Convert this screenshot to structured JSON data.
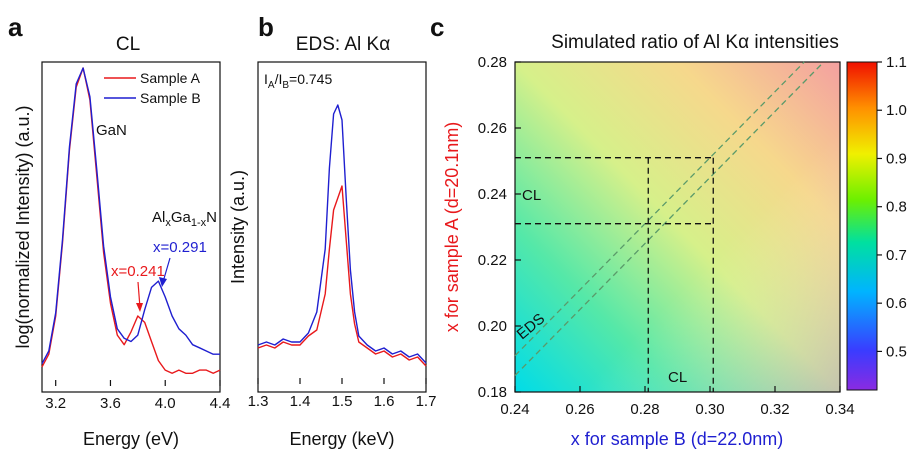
{
  "colors": {
    "sample_a": "#e8191c",
    "sample_b": "#1f1fd0",
    "axis": "#111111",
    "ylabel_c": "#e8191c",
    "xlabel_c": "#1f1fd0"
  },
  "chart_data": [
    {
      "panel": "a",
      "type": "line",
      "title": "CL",
      "xlabel": "Energy (eV)",
      "ylabel": "log(normalized Intensity) (a.u.)",
      "xlim": [
        3.1,
        4.4
      ],
      "xticks": [
        "3.2",
        "3.6",
        "4.0",
        "4.4"
      ],
      "x_tick_values": [
        3.2,
        3.6,
        4.0,
        4.4
      ],
      "y_relative_range": [
        0,
        1
      ],
      "legend_position": "top-right",
      "annotations": {
        "gan": "GaN",
        "alloy": {
          "base1": "Al",
          "sub1": "x",
          "base2": "Ga",
          "sub2": "1-x",
          "base3": "N"
        },
        "xa": "x=0.241",
        "xb": "x=0.291"
      },
      "series": [
        {
          "name": "Sample A",
          "color": "#e8191c",
          "x": [
            3.1,
            3.15,
            3.2,
            3.25,
            3.3,
            3.35,
            3.4,
            3.45,
            3.5,
            3.55,
            3.6,
            3.65,
            3.7,
            3.75,
            3.8,
            3.85,
            3.9,
            3.95,
            4.0,
            4.05,
            4.1,
            4.15,
            4.2,
            4.25,
            4.3,
            4.35,
            4.4
          ],
          "y": [
            0.06,
            0.1,
            0.22,
            0.45,
            0.74,
            0.94,
            1.0,
            0.9,
            0.66,
            0.42,
            0.26,
            0.16,
            0.13,
            0.17,
            0.22,
            0.2,
            0.14,
            0.08,
            0.05,
            0.04,
            0.05,
            0.04,
            0.04,
            0.05,
            0.05,
            0.04,
            0.05
          ]
        },
        {
          "name": "Sample B",
          "color": "#1f1fd0",
          "x": [
            3.1,
            3.15,
            3.2,
            3.25,
            3.3,
            3.35,
            3.4,
            3.45,
            3.5,
            3.55,
            3.6,
            3.65,
            3.7,
            3.75,
            3.8,
            3.85,
            3.9,
            3.95,
            4.0,
            4.05,
            4.1,
            4.15,
            4.2,
            4.25,
            4.3,
            4.35,
            4.4
          ],
          "y": [
            0.07,
            0.11,
            0.23,
            0.46,
            0.75,
            0.95,
            1.0,
            0.91,
            0.68,
            0.44,
            0.28,
            0.18,
            0.15,
            0.14,
            0.16,
            0.24,
            0.31,
            0.33,
            0.28,
            0.22,
            0.18,
            0.16,
            0.13,
            0.12,
            0.11,
            0.1,
            0.1
          ]
        }
      ]
    },
    {
      "panel": "b",
      "type": "line",
      "title": "EDS: Al Kα",
      "xlabel": "Energy (keV)",
      "ylabel": "Intensity (a.u.)",
      "xlim": [
        1.3,
        1.7
      ],
      "xticks": [
        "1.3",
        "1.4",
        "1.5",
        "1.6",
        "1.7"
      ],
      "x_tick_values": [
        1.3,
        1.4,
        1.5,
        1.6,
        1.7
      ],
      "y_relative_range": [
        0,
        1
      ],
      "ratio_text": {
        "ia": "I",
        "sa": "A",
        "slash": "/I",
        "sb": "B",
        "value": "=0.745"
      },
      "series": [
        {
          "name": "Sample A",
          "color": "#e8191c",
          "x": [
            1.3,
            1.32,
            1.34,
            1.36,
            1.38,
            1.4,
            1.42,
            1.44,
            1.46,
            1.47,
            1.48,
            1.49,
            1.5,
            1.51,
            1.52,
            1.53,
            1.54,
            1.56,
            1.58,
            1.6,
            1.62,
            1.64,
            1.66,
            1.68,
            1.7
          ],
          "y": [
            0.12,
            0.13,
            0.12,
            0.14,
            0.13,
            0.13,
            0.16,
            0.18,
            0.3,
            0.45,
            0.58,
            0.62,
            0.66,
            0.48,
            0.3,
            0.2,
            0.14,
            0.12,
            0.1,
            0.11,
            0.09,
            0.1,
            0.08,
            0.09,
            0.06
          ]
        },
        {
          "name": "Sample B",
          "color": "#1f1fd0",
          "x": [
            1.3,
            1.32,
            1.34,
            1.36,
            1.38,
            1.4,
            1.42,
            1.44,
            1.46,
            1.47,
            1.48,
            1.49,
            1.5,
            1.51,
            1.52,
            1.53,
            1.54,
            1.56,
            1.58,
            1.6,
            1.62,
            1.64,
            1.66,
            1.68,
            1.7
          ],
          "y": [
            0.13,
            0.14,
            0.13,
            0.15,
            0.14,
            0.14,
            0.17,
            0.24,
            0.45,
            0.72,
            0.9,
            0.93,
            0.88,
            0.62,
            0.38,
            0.24,
            0.16,
            0.13,
            0.11,
            0.12,
            0.1,
            0.11,
            0.09,
            0.1,
            0.07
          ]
        }
      ]
    },
    {
      "panel": "c",
      "type": "heatmap",
      "title": "Simulated ratio of Al Kα intensities",
      "xlabel": "x for sample B (d=22.0nm)",
      "ylabel": "x for sample A (d=20.1nm)",
      "xlim": [
        0.24,
        0.34
      ],
      "ylim": [
        0.18,
        0.28
      ],
      "xticks": [
        "0.24",
        "0.26",
        "0.28",
        "0.30",
        "0.32",
        "0.34"
      ],
      "yticks": [
        "0.18",
        "0.20",
        "0.22",
        "0.24",
        "0.26",
        "0.28"
      ],
      "colorbar": {
        "range": [
          0.42,
          1.1
        ],
        "ticks": [
          "0.5",
          "0.6",
          "0.7",
          "0.8",
          "0.9",
          "1.0",
          "1.1"
        ]
      },
      "eds_label": "EDS",
      "cl_label": "CL",
      "eds_lines": [
        {
          "intercept_y_at_x0_24": 0.191
        },
        {
          "intercept_y_at_x0_24": 0.185
        }
      ],
      "cl_region": {
        "x_range": [
          0.281,
          0.301
        ],
        "y_range": [
          0.231,
          0.251
        ]
      }
    }
  ]
}
